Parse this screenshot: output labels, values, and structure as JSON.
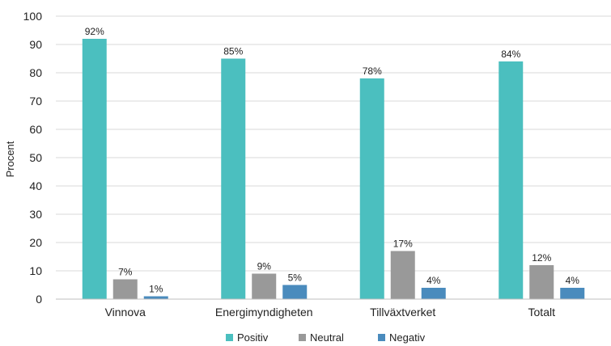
{
  "chart_data": {
    "type": "bar",
    "categories": [
      "Vinnova",
      "Energimyndigheten",
      "Tillväxtverket",
      "Totalt"
    ],
    "series": [
      {
        "name": "Positiv",
        "values": [
          92,
          85,
          78,
          84
        ],
        "labels": [
          "92%",
          "85%",
          "78%",
          "84%"
        ],
        "color": "#4bbfbf"
      },
      {
        "name": "Neutral",
        "values": [
          7,
          9,
          17,
          12
        ],
        "labels": [
          "7%",
          "9%",
          "17%",
          "12%"
        ],
        "color": "#999999"
      },
      {
        "name": "Negativ",
        "values": [
          1,
          5,
          4,
          4
        ],
        "labels": [
          "1%",
          "5%",
          "4%",
          "4%"
        ],
        "color": "#4a8bbd"
      }
    ],
    "ylabel": "Procent",
    "ylim": [
      0,
      100
    ],
    "yticks": [
      0,
      10,
      20,
      30,
      40,
      50,
      60,
      70,
      80,
      90,
      100
    ],
    "grid": true,
    "legend": "bottom"
  }
}
